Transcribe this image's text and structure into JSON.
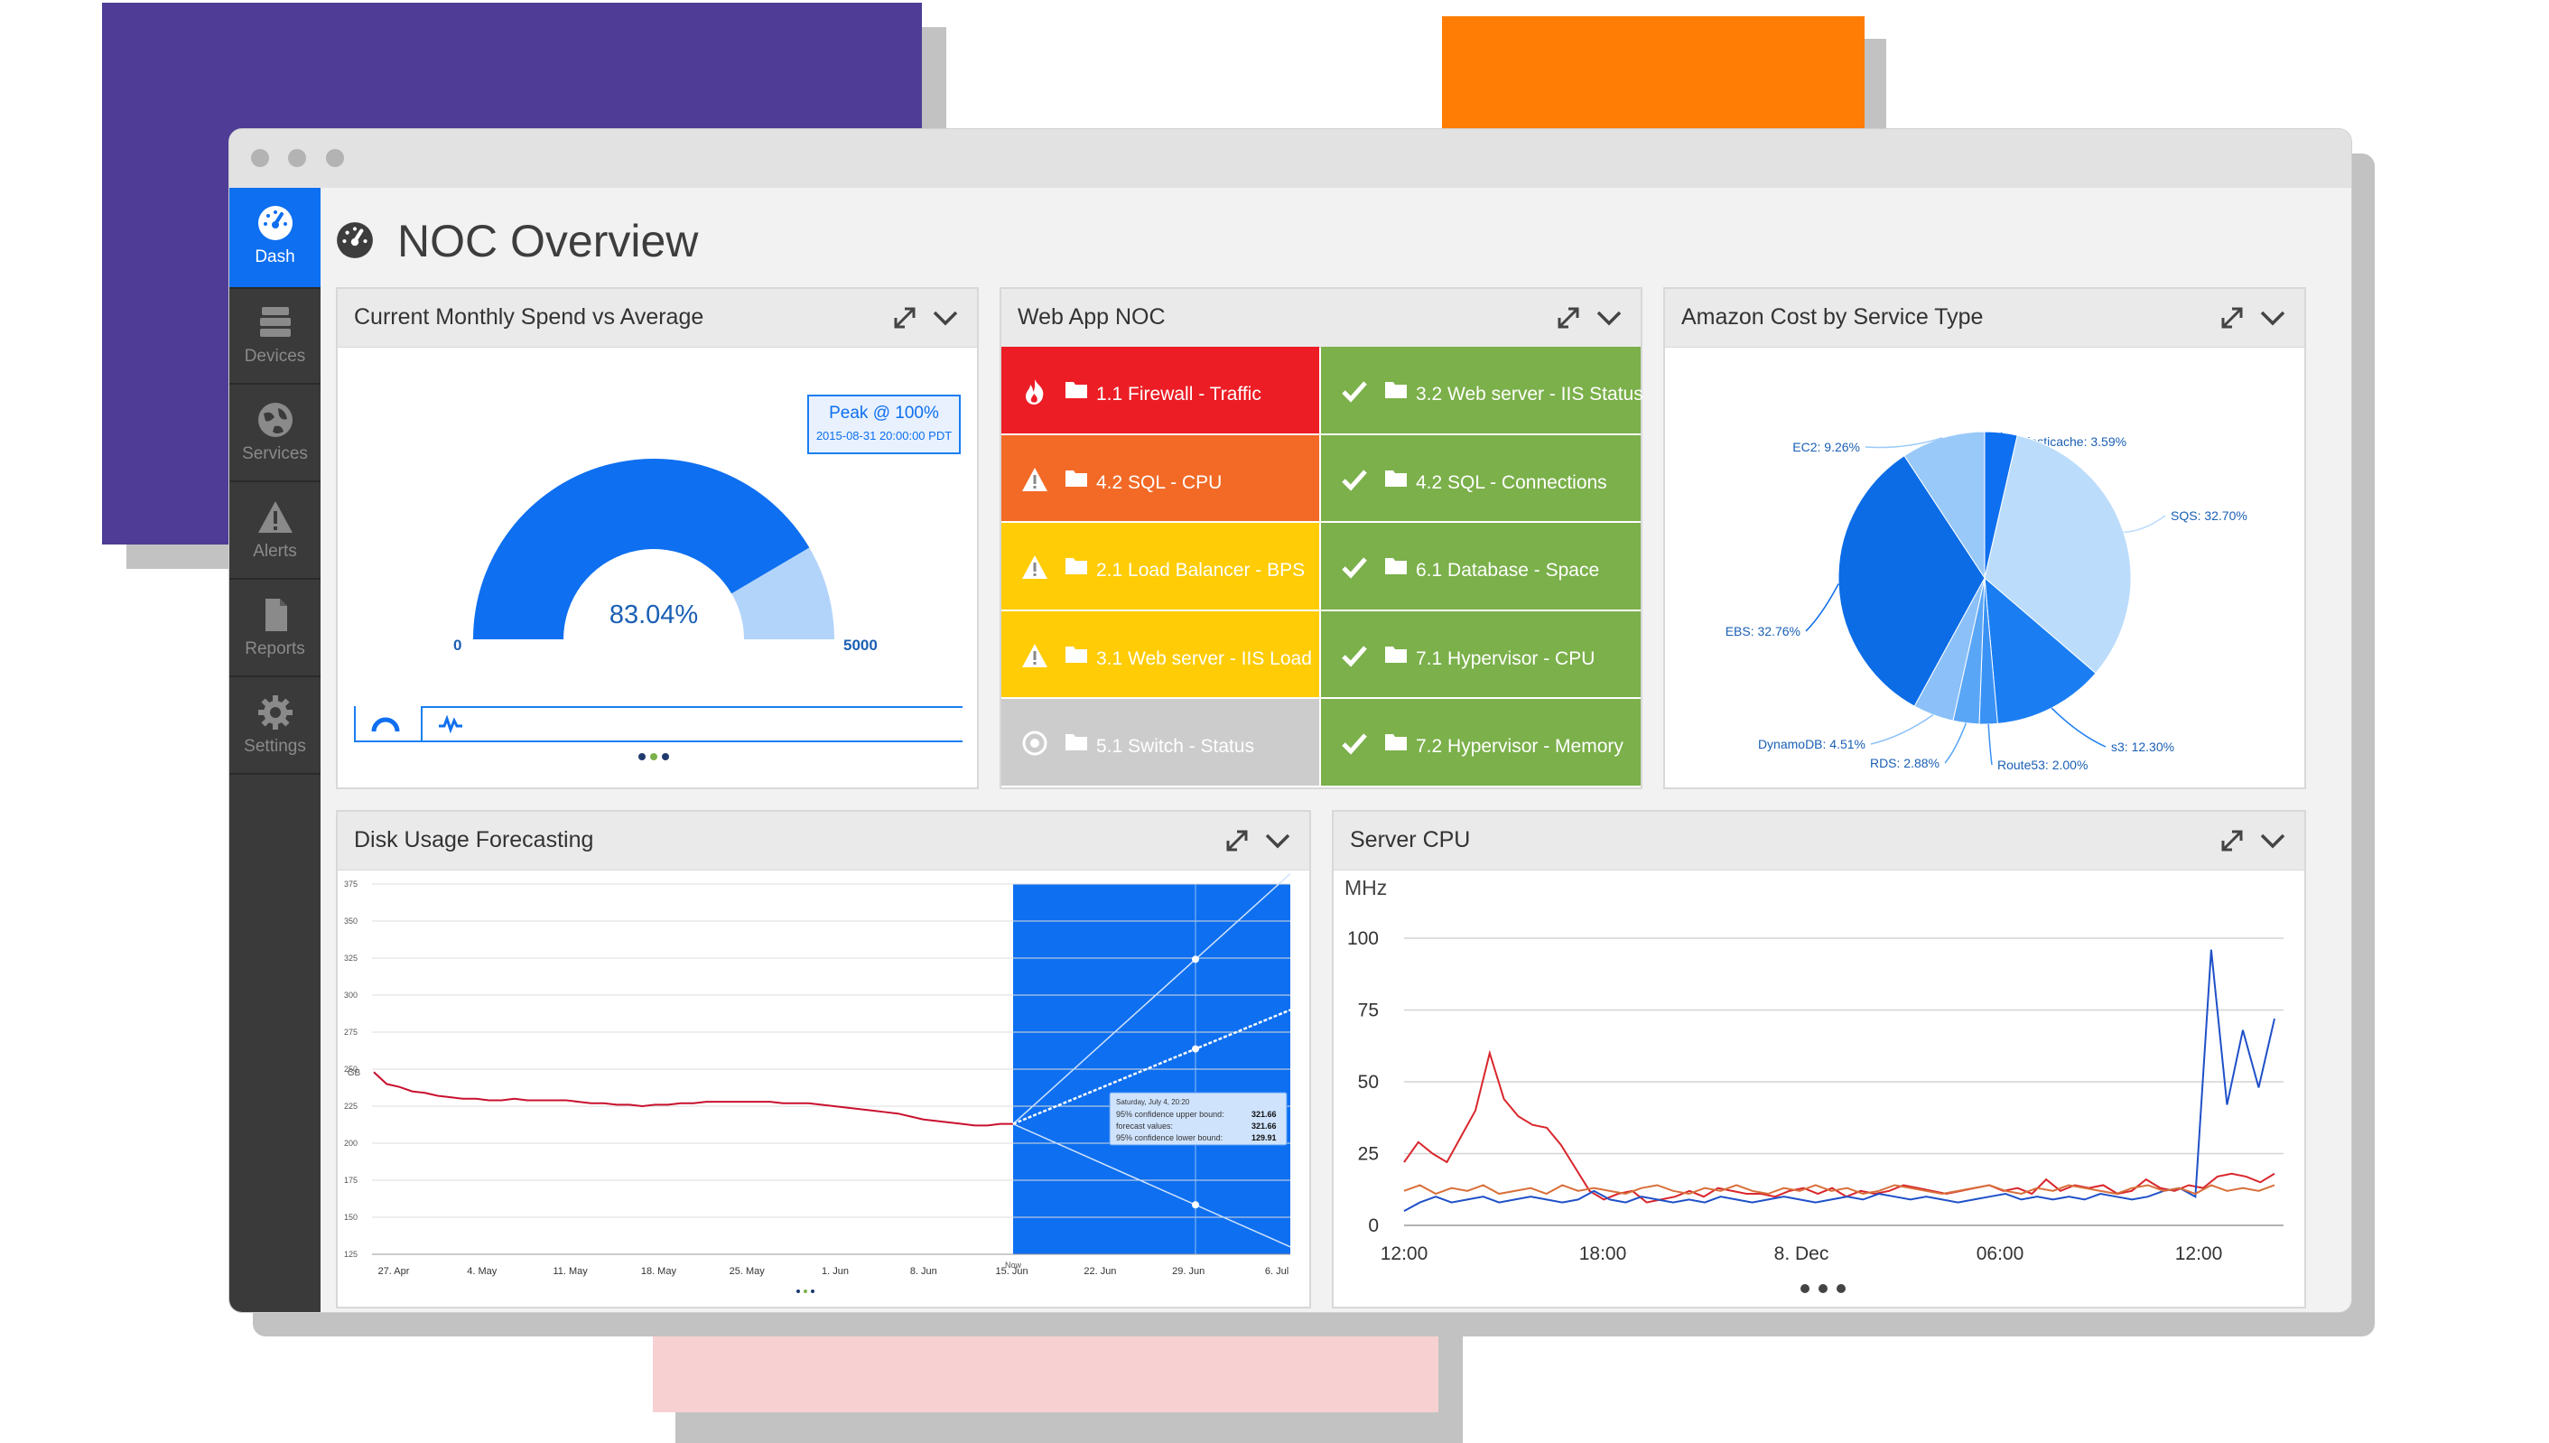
{
  "colors": {
    "accent": "#0e6ff0",
    "purple": "#4e3c96",
    "orange": "#ff7d04",
    "pink": "#f7d1d1",
    "red": "#ec1d25",
    "orange_tile": "#f26a26",
    "yellow": "#ffcc05",
    "green": "#7bb04a",
    "gray_tile": "#cccccc"
  },
  "sidebar": {
    "items": [
      {
        "label": "Dash",
        "icon": "speedometer-icon"
      },
      {
        "label": "Devices",
        "icon": "server-stack-icon"
      },
      {
        "label": "Services",
        "icon": "globe-icon"
      },
      {
        "label": "Alerts",
        "icon": "warning-icon"
      },
      {
        "label": "Reports",
        "icon": "document-icon"
      },
      {
        "label": "Settings",
        "icon": "gear-icon"
      }
    ]
  },
  "page": {
    "title": "NOC Overview",
    "title_icon": "speedometer-icon"
  },
  "panels": {
    "spend": {
      "title": "Current Monthly Spend vs Average",
      "tooltip_title": "Peak @ 100%",
      "tooltip_time": "2015-08-31 20:00:00 PDT",
      "value": "83.04%",
      "min": "0",
      "max": "5000",
      "gauge_fraction": 0.8304
    },
    "noc": {
      "title": "Web App NOC",
      "tiles": [
        {
          "label": "1.1 Firewall - Traffic",
          "status": "critical",
          "icon": "fire-icon"
        },
        {
          "label": "3.2 Web server - IIS Status",
          "status": "ok",
          "icon": "check-icon"
        },
        {
          "label": "4.2 SQL - CPU",
          "status": "error",
          "icon": "warning-icon"
        },
        {
          "label": "4.2 SQL - Connections",
          "status": "ok",
          "icon": "check-icon"
        },
        {
          "label": "2.1 Load Balancer - BPS",
          "status": "warning",
          "icon": "warning-icon"
        },
        {
          "label": "6.1 Database - Space",
          "status": "ok",
          "icon": "check-icon"
        },
        {
          "label": "3.1 Web server - IIS Load",
          "status": "warning",
          "icon": "warning-icon"
        },
        {
          "label": "7.1 Hypervisor - CPU",
          "status": "ok",
          "icon": "check-icon"
        },
        {
          "label": "5.1 Switch - Status",
          "status": "unknown",
          "icon": "unknown-icon"
        },
        {
          "label": "7.2 Hypervisor - Memory",
          "status": "ok",
          "icon": "check-icon"
        }
      ]
    },
    "cost": {
      "title": "Amazon Cost by Service Type"
    },
    "disk": {
      "title": "Disk Usage Forecasting"
    },
    "cpu": {
      "title": "Server CPU"
    }
  },
  "chart_data": [
    {
      "type": "gauge",
      "value": 83.04,
      "display": "83.04%",
      "min": 0,
      "max": 5000,
      "peak_label": "Peak @ 100%",
      "peak_time": "2015-08-31 20:00:00 PDT"
    },
    {
      "type": "pie",
      "title": "Amazon Cost by Service Type",
      "slices": [
        {
          "label": "Elasticache: 3.59%",
          "value": 3.59,
          "color": "#0e6ff0"
        },
        {
          "label": "SQS: 32.70%",
          "value": 32.7,
          "color": "#bcdcfb"
        },
        {
          "label": "s3: 12.30%",
          "value": 12.3,
          "color": "#1a7ef2"
        },
        {
          "label": "Route53: 2.00%",
          "value": 2.0,
          "color": "#3a92f5"
        },
        {
          "label": "RDS: 2.88%",
          "value": 2.88,
          "color": "#5aa6f6"
        },
        {
          "label": "DynamoDB: 4.51%",
          "value": 4.51,
          "color": "#8bc1f8"
        },
        {
          "label": "EBS: 32.76%",
          "value": 32.76,
          "color": "#0b6ce6"
        },
        {
          "label": "EC2: 9.26%",
          "value": 9.26,
          "color": "#99c9f9"
        }
      ]
    },
    {
      "type": "line",
      "title": "Disk Usage Forecasting",
      "ylabel": "GB",
      "ylim": [
        125,
        375
      ],
      "yticks": [
        "375",
        "350",
        "325",
        "300",
        "275",
        "250",
        "225",
        "200",
        "175",
        "150",
        "125"
      ],
      "xticks": [
        "27. Apr",
        "4. May",
        "11. May",
        "18. May",
        "25. May",
        "1. Jun",
        "8. Jun",
        "15. Jun",
        "22. Jun",
        "29. Jun",
        "6. Jul"
      ],
      "now_label": "Now",
      "tooltip": {
        "date": "Saturday, July 4, 20:20",
        "upper_label": "95% confidence upper bound:",
        "upper": "321.66",
        "forecast_label": "forecast values:",
        "forecast": "321.66",
        "lower_label": "95% confidence lower bound:",
        "lower": "129.91"
      },
      "series": [
        {
          "values": [
            248,
            240,
            238,
            235,
            234,
            232,
            231,
            230,
            230,
            229,
            229,
            230,
            229,
            229,
            229,
            229,
            228,
            227,
            227,
            226,
            226,
            225,
            226,
            226,
            227,
            227,
            228,
            228,
            228,
            228,
            228,
            228,
            227,
            227,
            227,
            226,
            225,
            224,
            223,
            222,
            221,
            220,
            218,
            216,
            215,
            214,
            213,
            212,
            212,
            213,
            213
          ]
        }
      ],
      "forecast": {
        "start_gb": 213,
        "end_gb": 290,
        "upper_end_gb": 382,
        "lower_end_gb": 130
      }
    },
    {
      "type": "line",
      "title": "Server CPU",
      "ylabel": "MHz",
      "ylim": [
        0,
        100
      ],
      "yticks": [
        "100",
        "75",
        "50",
        "25",
        "0"
      ],
      "xticks": [
        "12:00",
        "18:00",
        "8. Dec",
        "06:00",
        "12:00"
      ],
      "series": [
        {
          "color": "#d9262c",
          "values": [
            22,
            29,
            25,
            22,
            31,
            40,
            60,
            44,
            38,
            35,
            34,
            28,
            20,
            12,
            9,
            11,
            12,
            8,
            9,
            10,
            12,
            10,
            13,
            12,
            11,
            11,
            10,
            12,
            13,
            11,
            13,
            10,
            12,
            11,
            12,
            14,
            13,
            12,
            11,
            12,
            13,
            14,
            12,
            13,
            11,
            16,
            12,
            14,
            13,
            14,
            11,
            12,
            16,
            13,
            12,
            14,
            13,
            17,
            18,
            17,
            15,
            18
          ]
        },
        {
          "color": "#1f50c8",
          "values": [
            5,
            8,
            10,
            8,
            9,
            10,
            8,
            9,
            10,
            9,
            8,
            9,
            12,
            9,
            8,
            10,
            9,
            8,
            9,
            8,
            10,
            9,
            8,
            9,
            10,
            9,
            8,
            9,
            10,
            9,
            11,
            10,
            9,
            10,
            9,
            8,
            9,
            10,
            11,
            9,
            10,
            9,
            10,
            9,
            11,
            10,
            9,
            10,
            12,
            13,
            10,
            96,
            42,
            68,
            48,
            72
          ]
        },
        {
          "color": "#d86f3a",
          "values": [
            12,
            14,
            11,
            13,
            12,
            14,
            11,
            12,
            13,
            11,
            14,
            12,
            13,
            12,
            11,
            13,
            14,
            12,
            11,
            13,
            12,
            14,
            12,
            11,
            13,
            12,
            14,
            12,
            13,
            11,
            12,
            14,
            13,
            12,
            11,
            12,
            13,
            14,
            12,
            11,
            13,
            12,
            14,
            13,
            12,
            11,
            13,
            14,
            12,
            13,
            11,
            14,
            12,
            13,
            12,
            14
          ]
        }
      ]
    }
  ]
}
